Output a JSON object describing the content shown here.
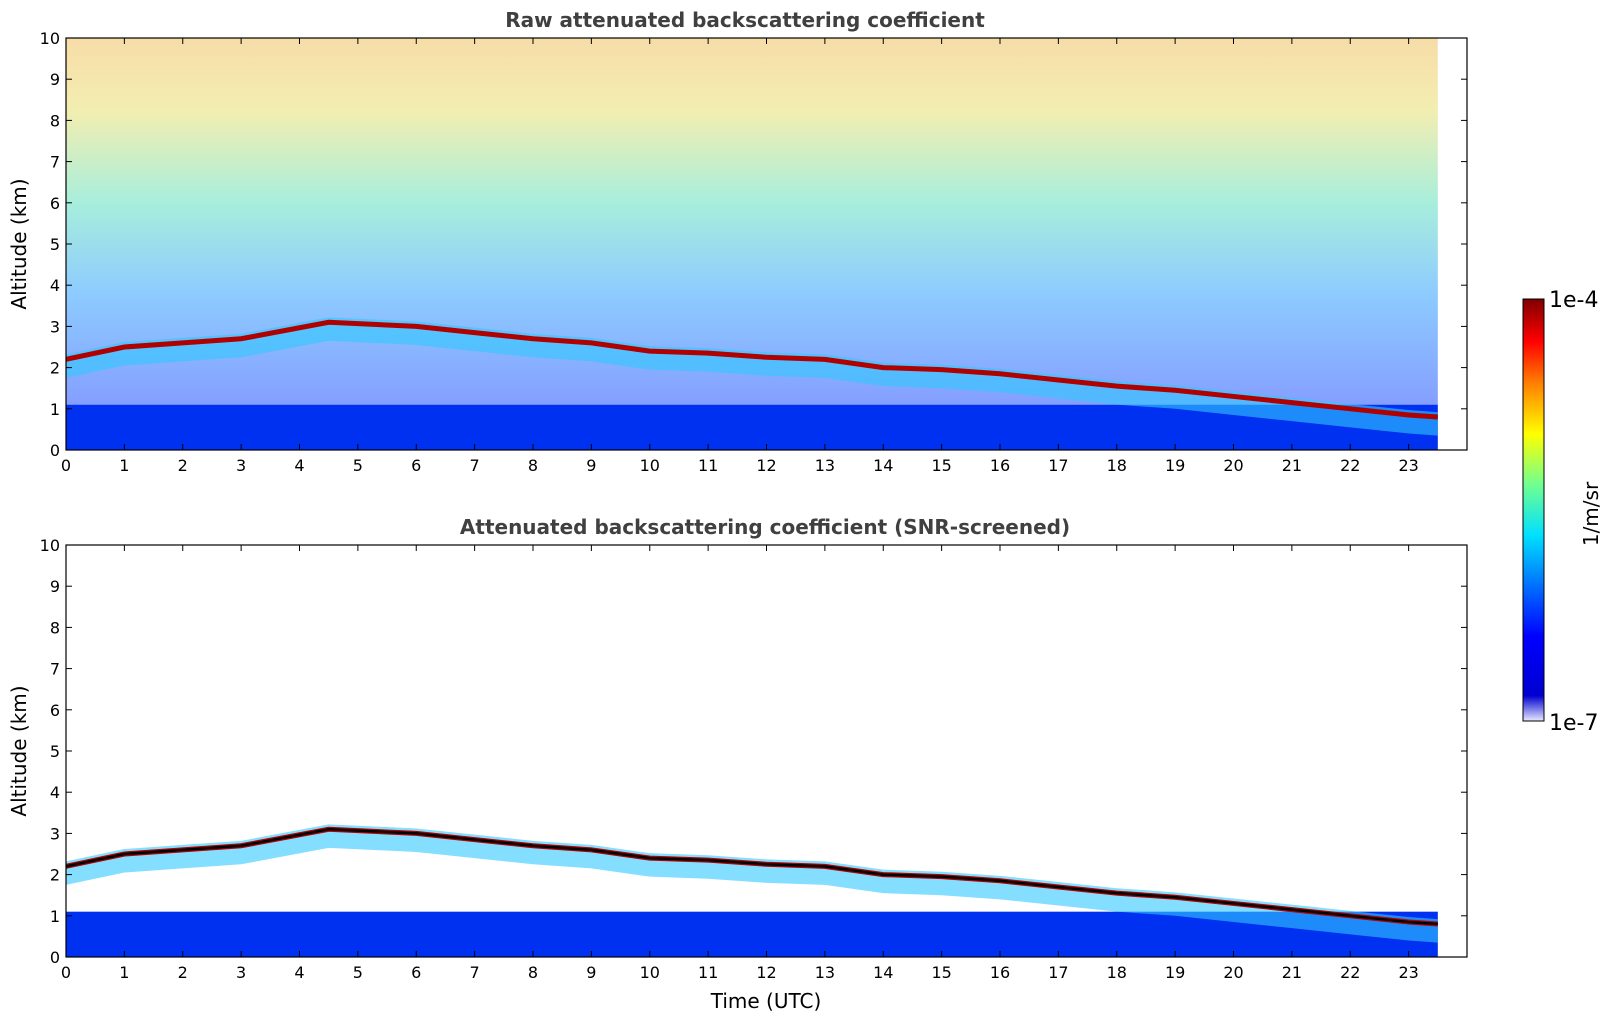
{
  "chart_data": [
    {
      "type": "heatmap",
      "title": "Raw attenuated backscattering coefficient",
      "xlabel": "",
      "ylabel": "Altitude (km)",
      "xlim": [
        0,
        24
      ],
      "ylim": [
        0,
        10
      ],
      "xticks": [
        "0",
        "1",
        "2",
        "3",
        "4",
        "5",
        "6",
        "7",
        "8",
        "9",
        "10",
        "11",
        "12",
        "13",
        "14",
        "15",
        "16",
        "17",
        "18",
        "19",
        "20",
        "21",
        "22",
        "23"
      ],
      "yticks": [
        "0",
        "1",
        "2",
        "3",
        "4",
        "5",
        "6",
        "7",
        "8",
        "9",
        "10"
      ],
      "data_end_time": 23.5,
      "cloud_base_track": [
        [
          0,
          2.2
        ],
        [
          1,
          2.5
        ],
        [
          2,
          2.6
        ],
        [
          3,
          2.7
        ],
        [
          4.5,
          3.1
        ],
        [
          6,
          3.0
        ],
        [
          7,
          2.85
        ],
        [
          8,
          2.7
        ],
        [
          9,
          2.6
        ],
        [
          10,
          2.4
        ],
        [
          11,
          2.35
        ],
        [
          12,
          2.25
        ],
        [
          13,
          2.2
        ],
        [
          14,
          2.0
        ],
        [
          15,
          1.95
        ],
        [
          16,
          1.85
        ],
        [
          17,
          1.7
        ],
        [
          18,
          1.55
        ],
        [
          19,
          1.45
        ],
        [
          20,
          1.3
        ],
        [
          21,
          1.15
        ],
        [
          22,
          1.0
        ],
        [
          23,
          0.85
        ],
        [
          23.5,
          0.8
        ]
      ],
      "boundary_layer_top_km": 1.1,
      "colormap": "jet",
      "scale": "log"
    },
    {
      "type": "heatmap",
      "title": "Attenuated backscattering coefficient (SNR-screened)",
      "xlabel": "Time (UTC)",
      "ylabel": "Altitude (km)",
      "xlim": [
        0,
        24
      ],
      "ylim": [
        0,
        10
      ],
      "xticks": [
        "0",
        "1",
        "2",
        "3",
        "4",
        "5",
        "6",
        "7",
        "8",
        "9",
        "10",
        "11",
        "12",
        "13",
        "14",
        "15",
        "16",
        "17",
        "18",
        "19",
        "20",
        "21",
        "22",
        "23"
      ],
      "yticks": [
        "0",
        "1",
        "2",
        "3",
        "4",
        "5",
        "6",
        "7",
        "8",
        "9",
        "10"
      ],
      "data_end_time": 23.5,
      "cloud_base_track": [
        [
          0,
          2.2
        ],
        [
          1,
          2.5
        ],
        [
          2,
          2.6
        ],
        [
          3,
          2.7
        ],
        [
          4.5,
          3.1
        ],
        [
          6,
          3.0
        ],
        [
          7,
          2.85
        ],
        [
          8,
          2.7
        ],
        [
          9,
          2.6
        ],
        [
          10,
          2.4
        ],
        [
          11,
          2.35
        ],
        [
          12,
          2.25
        ],
        [
          13,
          2.2
        ],
        [
          14,
          2.0
        ],
        [
          15,
          1.95
        ],
        [
          16,
          1.85
        ],
        [
          17,
          1.7
        ],
        [
          18,
          1.55
        ],
        [
          19,
          1.45
        ],
        [
          20,
          1.3
        ],
        [
          21,
          1.15
        ],
        [
          22,
          1.0
        ],
        [
          23,
          0.85
        ],
        [
          23.5,
          0.8
        ]
      ],
      "boundary_layer_top_km": 1.1,
      "colormap": "jet",
      "scale": "log"
    }
  ],
  "colorbar": {
    "min_label": "1e-7",
    "max_label": "1e-4",
    "label": "1/m/sr",
    "colors": [
      "#00008b",
      "#0000ff",
      "#0080ff",
      "#00ffff",
      "#80ff80",
      "#ffff00",
      "#ff8000",
      "#ff0000",
      "#800000"
    ]
  }
}
